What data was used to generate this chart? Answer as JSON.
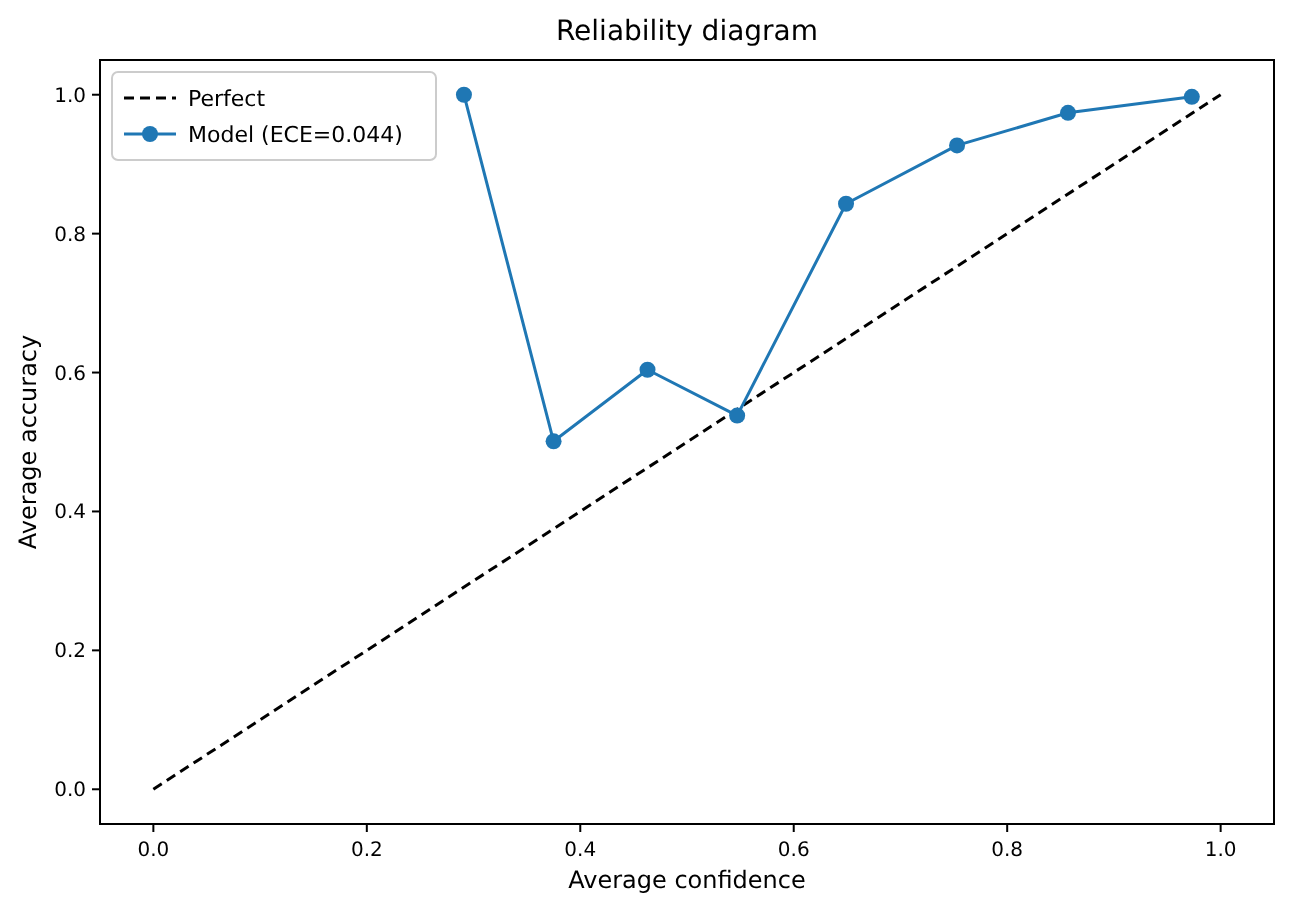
{
  "chart_data": {
    "type": "line",
    "title": "Reliability diagram",
    "xlabel": "Average confidence",
    "ylabel": "Average accuracy",
    "xlim": [
      -0.05,
      1.05
    ],
    "ylim": [
      -0.05,
      1.05
    ],
    "xticks": [
      {
        "value": 0,
        "label": "0.0"
      },
      0.2,
      0.4,
      0.6,
      0.8,
      {
        "value": 1,
        "label": "1.0"
      }
    ],
    "yticks": [
      {
        "value": 0,
        "label": "0.0"
      },
      0.2,
      0.4,
      0.6,
      0.8,
      {
        "value": 1,
        "label": "1.0"
      }
    ],
    "legend": "top left",
    "grid": false,
    "series": [
      {
        "name": "Perfect",
        "color": "#000000",
        "x": [
          0,
          1
        ],
        "values": [
          0,
          1
        ],
        "line_style": "dashed",
        "marker": "none"
      },
      {
        "name": "Model (ECE=0.044)",
        "color": "#1f77b4",
        "x": [
          0.291,
          0.375,
          0.463,
          0.547,
          0.649,
          0.753,
          0.857,
          0.973
        ],
        "values": [
          1.0,
          0.501,
          0.604,
          0.538,
          0.843,
          0.927,
          0.974,
          0.997
        ],
        "line_style": "solid",
        "marker": "circle"
      }
    ]
  }
}
